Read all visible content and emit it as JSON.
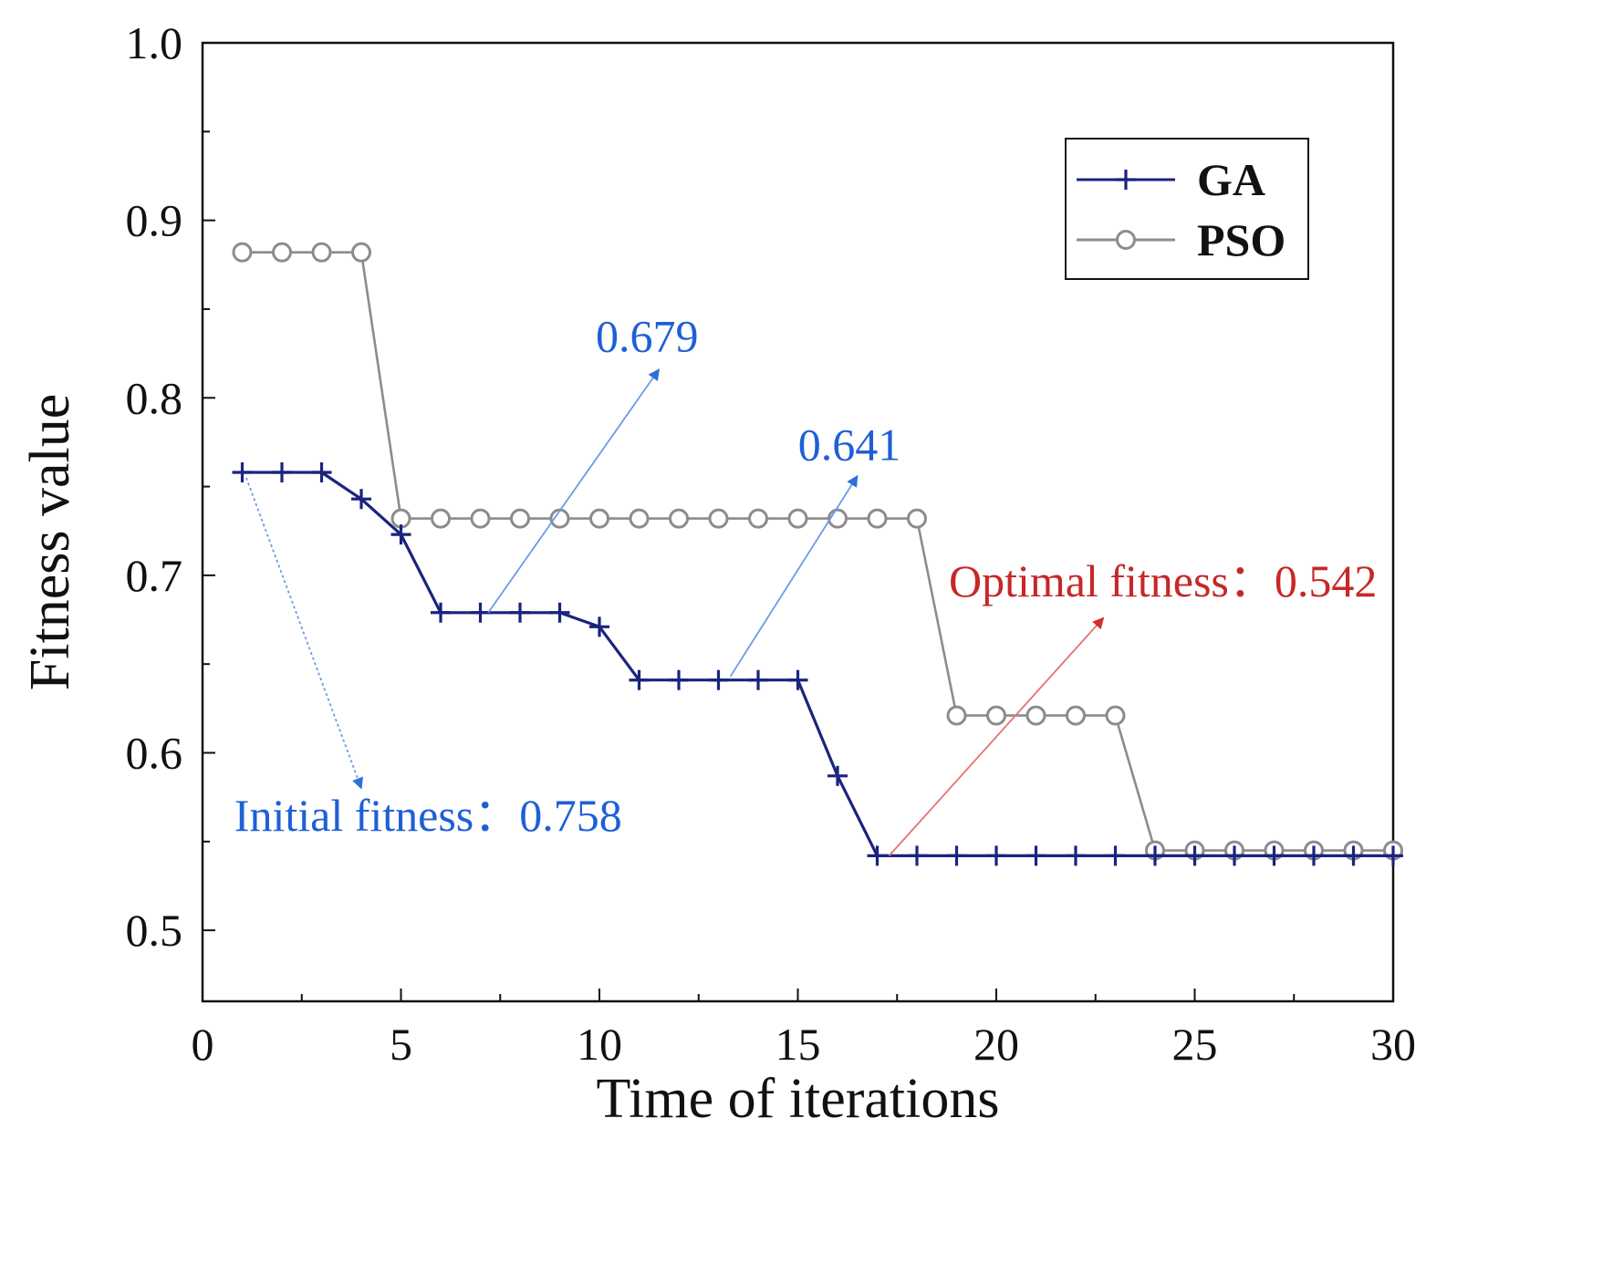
{
  "chart_data": {
    "type": "line",
    "title": "",
    "xlabel": "Time of iterations",
    "ylabel": "Fitness value",
    "xlim": [
      0,
      30
    ],
    "ylim": [
      0.46,
      1.0
    ],
    "x_ticks": [
      "0",
      "5",
      "10",
      "15",
      "20",
      "25",
      "30"
    ],
    "y_ticks": [
      "0.5",
      "0.6",
      "0.7",
      "0.8",
      "0.9",
      "1.0"
    ],
    "grid": false,
    "legend_position": "top-right",
    "series": [
      {
        "name": "GA",
        "color": "#1a237e",
        "marker": "plus",
        "x": [
          1,
          2,
          3,
          4,
          5,
          6,
          7,
          8,
          9,
          10,
          11,
          12,
          13,
          14,
          15,
          16,
          17,
          18,
          19,
          20,
          21,
          22,
          23,
          24,
          25,
          26,
          27,
          28,
          29,
          30
        ],
        "values": [
          0.758,
          0.758,
          0.758,
          0.743,
          0.723,
          0.679,
          0.679,
          0.679,
          0.679,
          0.671,
          0.641,
          0.641,
          0.641,
          0.641,
          0.641,
          0.587,
          0.542,
          0.542,
          0.542,
          0.542,
          0.542,
          0.542,
          0.542,
          0.542,
          0.542,
          0.542,
          0.542,
          0.542,
          0.542,
          0.542
        ]
      },
      {
        "name": "PSO",
        "color": "#8c8c8c",
        "marker": "circle",
        "x": [
          1,
          2,
          3,
          4,
          5,
          6,
          7,
          8,
          9,
          10,
          11,
          12,
          13,
          14,
          15,
          16,
          17,
          18,
          19,
          20,
          21,
          22,
          23,
          24,
          25,
          26,
          27,
          28,
          29,
          30
        ],
        "values": [
          0.882,
          0.882,
          0.882,
          0.882,
          0.732,
          0.732,
          0.732,
          0.732,
          0.732,
          0.732,
          0.732,
          0.732,
          0.732,
          0.732,
          0.732,
          0.732,
          0.732,
          0.732,
          0.621,
          0.621,
          0.621,
          0.621,
          0.621,
          0.545,
          0.545,
          0.545,
          0.545,
          0.545,
          0.545,
          0.545
        ]
      }
    ],
    "annotations": [
      {
        "text": "0.679",
        "color": "#1f5fd6",
        "from": [
          7.2,
          0.679
        ],
        "to": [
          11.5,
          0.816
        ],
        "label_at": [
          11.2,
          0.826
        ],
        "anchor": "middle",
        "dashed": false
      },
      {
        "text": "0.641",
        "color": "#1f5fd6",
        "from": [
          13.3,
          0.643
        ],
        "to": [
          16.5,
          0.756
        ],
        "label_at": [
          16.3,
          0.765
        ],
        "anchor": "middle",
        "dashed": false
      },
      {
        "text": "Optimal fitness：0.542",
        "color": "#c62828",
        "from": [
          17.3,
          0.542
        ],
        "to": [
          22.7,
          0.676
        ],
        "label_at": [
          24.2,
          0.688
        ],
        "anchor": "middle",
        "dashed": false
      },
      {
        "text": "Initial fitness：0.758",
        "color": "#1f5fd6",
        "from": [
          1.1,
          0.755
        ],
        "to": [
          4.0,
          0.58
        ],
        "label_at": [
          0.8,
          0.556
        ],
        "anchor": "start",
        "dashed": true
      }
    ]
  }
}
